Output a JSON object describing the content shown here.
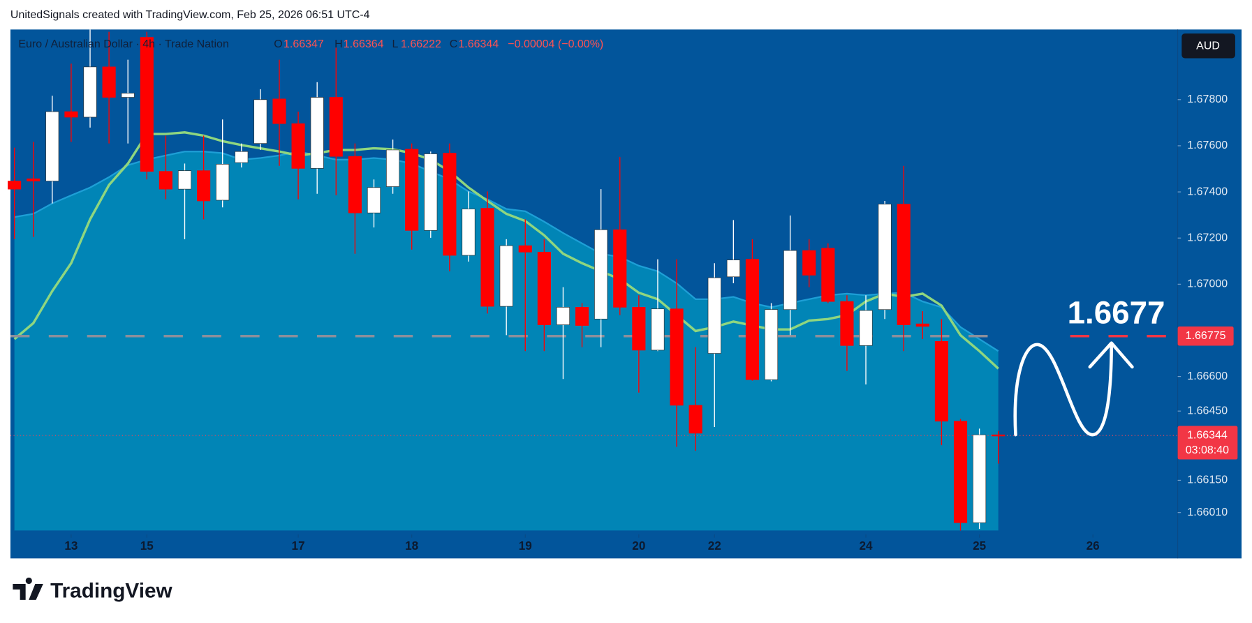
{
  "chart_data": {
    "type": "candlestick",
    "watermark": "UnitedSignals created with TradingView.com, Feb 25, 2026 06:51 UTC-4",
    "title": "Euro / Australian Dollar · 4h · Trade Nation",
    "ohlc_labels": [
      "O",
      "H",
      "L",
      "C"
    ],
    "change": "−0.00004 (−0.00%)",
    "currency": "AUD",
    "countdown": "03:08:40",
    "brand": "TradingView",
    "annotation": "1.6677",
    "up_color": "#ffffff",
    "down_color": "#ff0000",
    "x": [
      0,
      1,
      2,
      3,
      4,
      5,
      6,
      7,
      8,
      9,
      10,
      11,
      12,
      13,
      14,
      15,
      16,
      17,
      18,
      19,
      20,
      21,
      22,
      23,
      24,
      25,
      26,
      27,
      28,
      29,
      30,
      31,
      32,
      33,
      34,
      35,
      36,
      37,
      38,
      39,
      40,
      41,
      42,
      43,
      44,
      45,
      46,
      47,
      48,
      49,
      50,
      51,
      52
    ],
    "open": [
      1.67447,
      1.67457,
      1.67447,
      1.67748,
      1.67724,
      1.67942,
      1.6781,
      1.6807,
      1.67489,
      1.67412,
      1.67492,
      1.67364,
      1.67527,
      1.6761,
      1.67803,
      1.67696,
      1.67502,
      1.6781,
      1.67554,
      1.67309,
      1.67423,
      1.67585,
      1.67233,
      1.67568,
      1.67125,
      1.67329,
      1.66904,
      1.67167,
      1.67139,
      1.66824,
      1.669,
      1.66849,
      1.67236,
      1.669,
      1.66714,
      1.66893,
      1.66475,
      1.667,
      1.67032,
      1.67108,
      1.66586,
      1.6689,
      1.67146,
      1.67156,
      1.66925,
      1.66734,
      1.6689,
      1.67347,
      1.66828,
      1.66752,
      1.66406,
      1.65966,
      1.66347
    ],
    "high": [
      1.67592,
      1.67617,
      1.67817,
      1.67956,
      1.68104,
      1.68094,
      1.67973,
      1.68094,
      1.67644,
      1.67523,
      1.67644,
      1.67714,
      1.6761,
      1.67845,
      1.67973,
      1.67748,
      1.67876,
      1.68025,
      1.6761,
      1.67454,
      1.67627,
      1.6761,
      1.67575,
      1.6761,
      1.67402,
      1.67402,
      1.67195,
      1.67281,
      1.67195,
      1.66987,
      1.66918,
      1.67412,
      1.67551,
      1.66952,
      1.67108,
      1.67108,
      1.66727,
      1.67091,
      1.67278,
      1.67195,
      1.66918,
      1.67298,
      1.67195,
      1.67177,
      1.66952,
      1.66952,
      1.67361,
      1.67513,
      1.66883,
      1.66849,
      1.66416,
      1.66374,
      1.66364
    ],
    "low": [
      1.67195,
      1.67205,
      1.6735,
      1.67617,
      1.67679,
      1.6761,
      1.6761,
      1.67454,
      1.67368,
      1.67195,
      1.67281,
      1.67333,
      1.67506,
      1.67582,
      1.67513,
      1.67368,
      1.67392,
      1.67385,
      1.67132,
      1.67246,
      1.67392,
      1.6715,
      1.67201,
      1.67056,
      1.67098,
      1.66873,
      1.66779,
      1.6671,
      1.6671,
      1.66589,
      1.66727,
      1.66727,
      1.66866,
      1.6653,
      1.6671,
      1.66295,
      1.66278,
      1.66381,
      1.67004,
      1.66582,
      1.66579,
      1.66779,
      1.66987,
      1.66918,
      1.66624,
      1.66565,
      1.66849,
      1.6671,
      1.66762,
      1.66302,
      1.65932,
      1.65939,
      1.66222
    ],
    "close": [
      1.67412,
      1.67447,
      1.67748,
      1.67724,
      1.67942,
      1.6781,
      1.67828,
      1.67489,
      1.67412,
      1.67492,
      1.67361,
      1.6752,
      1.67575,
      1.678,
      1.67696,
      1.67502,
      1.6781,
      1.67554,
      1.67309,
      1.67419,
      1.67582,
      1.67233,
      1.67565,
      1.67125,
      1.67326,
      1.66904,
      1.67167,
      1.67139,
      1.66824,
      1.669,
      1.66821,
      1.67236,
      1.669,
      1.66714,
      1.66893,
      1.66475,
      1.66354,
      1.67028,
      1.67105,
      1.66586,
      1.6689,
      1.67146,
      1.67039,
      1.66925,
      1.66734,
      1.66886,
      1.67347,
      1.66824,
      1.66817,
      1.66406,
      1.65966,
      1.66347,
      1.66344
    ],
    "series": [
      {
        "color": "#8fd67f",
        "values": [
          1.66762,
          1.66831,
          1.6697,
          1.67091,
          1.67281,
          1.6743,
          1.67523,
          1.67651,
          1.67651,
          1.67658,
          1.67644,
          1.6762,
          1.67603,
          1.67589,
          1.67575,
          1.67558,
          1.67568,
          1.67582,
          1.67582,
          1.67589,
          1.67585,
          1.67568,
          1.6754,
          1.67489,
          1.67419,
          1.67361,
          1.67305,
          1.67274,
          1.67212,
          1.67132,
          1.67091,
          1.67056,
          1.67022,
          1.66963,
          1.66935,
          1.66866,
          1.66797,
          1.66814,
          1.66838,
          1.66821,
          1.66804,
          1.66804,
          1.66842,
          1.66849,
          1.66866,
          1.66925,
          1.66959,
          1.66945,
          1.66959,
          1.66907,
          1.66779,
          1.6671,
          1.66634
        ]
      },
      {
        "color": "#1e9fd6",
        "fill": "#0185b6",
        "values": [
          1.67291,
          1.67305,
          1.6735,
          1.67385,
          1.67419,
          1.67464,
          1.67516,
          1.6754,
          1.67558,
          1.67575,
          1.67575,
          1.67568,
          1.6754,
          1.67547,
          1.67558,
          1.67575,
          1.67558,
          1.6754,
          1.6754,
          1.67547,
          1.6754,
          1.67523,
          1.67489,
          1.67454,
          1.67402,
          1.67368,
          1.67326,
          1.67316,
          1.67271,
          1.67222,
          1.67177,
          1.67132,
          1.67118,
          1.6708,
          1.67056,
          1.67004,
          1.66935,
          1.66935,
          1.66945,
          1.66918,
          1.669,
          1.66918,
          1.66935,
          1.66952,
          1.66959,
          1.66952,
          1.66959,
          1.66963,
          1.66925,
          1.669,
          1.66814,
          1.66762,
          1.6671
        ]
      }
    ],
    "level": 1.66775,
    "level_color": "#f23645",
    "xlim": [
      -0.21,
      61.48
    ],
    "xticks": [
      {
        "value": 3,
        "label": "13"
      },
      {
        "value": 7,
        "label": "15"
      },
      {
        "value": 15,
        "label": "17"
      },
      {
        "value": 21,
        "label": "18"
      },
      {
        "value": 27,
        "label": "19"
      },
      {
        "value": 33,
        "label": "20"
      },
      {
        "value": 37,
        "label": "22"
      },
      {
        "value": 45,
        "label": "24"
      },
      {
        "value": 51,
        "label": "25"
      },
      {
        "value": 57,
        "label": "26"
      }
    ],
    "ylim": [
      1.65922,
      1.68104
    ],
    "yticks": [
      {
        "value": 1.678,
        "label": "1.67800"
      },
      {
        "value": 1.676,
        "label": "1.67600"
      },
      {
        "value": 1.674,
        "label": "1.67400"
      },
      {
        "value": 1.672,
        "label": "1.67200"
      },
      {
        "value": 1.67,
        "label": "1.67000"
      },
      {
        "value": 1.666,
        "label": "1.66600"
      },
      {
        "value": 1.6645,
        "label": "1.66450"
      },
      {
        "value": 1.6615,
        "label": "1.66150"
      },
      {
        "value": 1.6601,
        "label": "1.66010"
      }
    ]
  }
}
